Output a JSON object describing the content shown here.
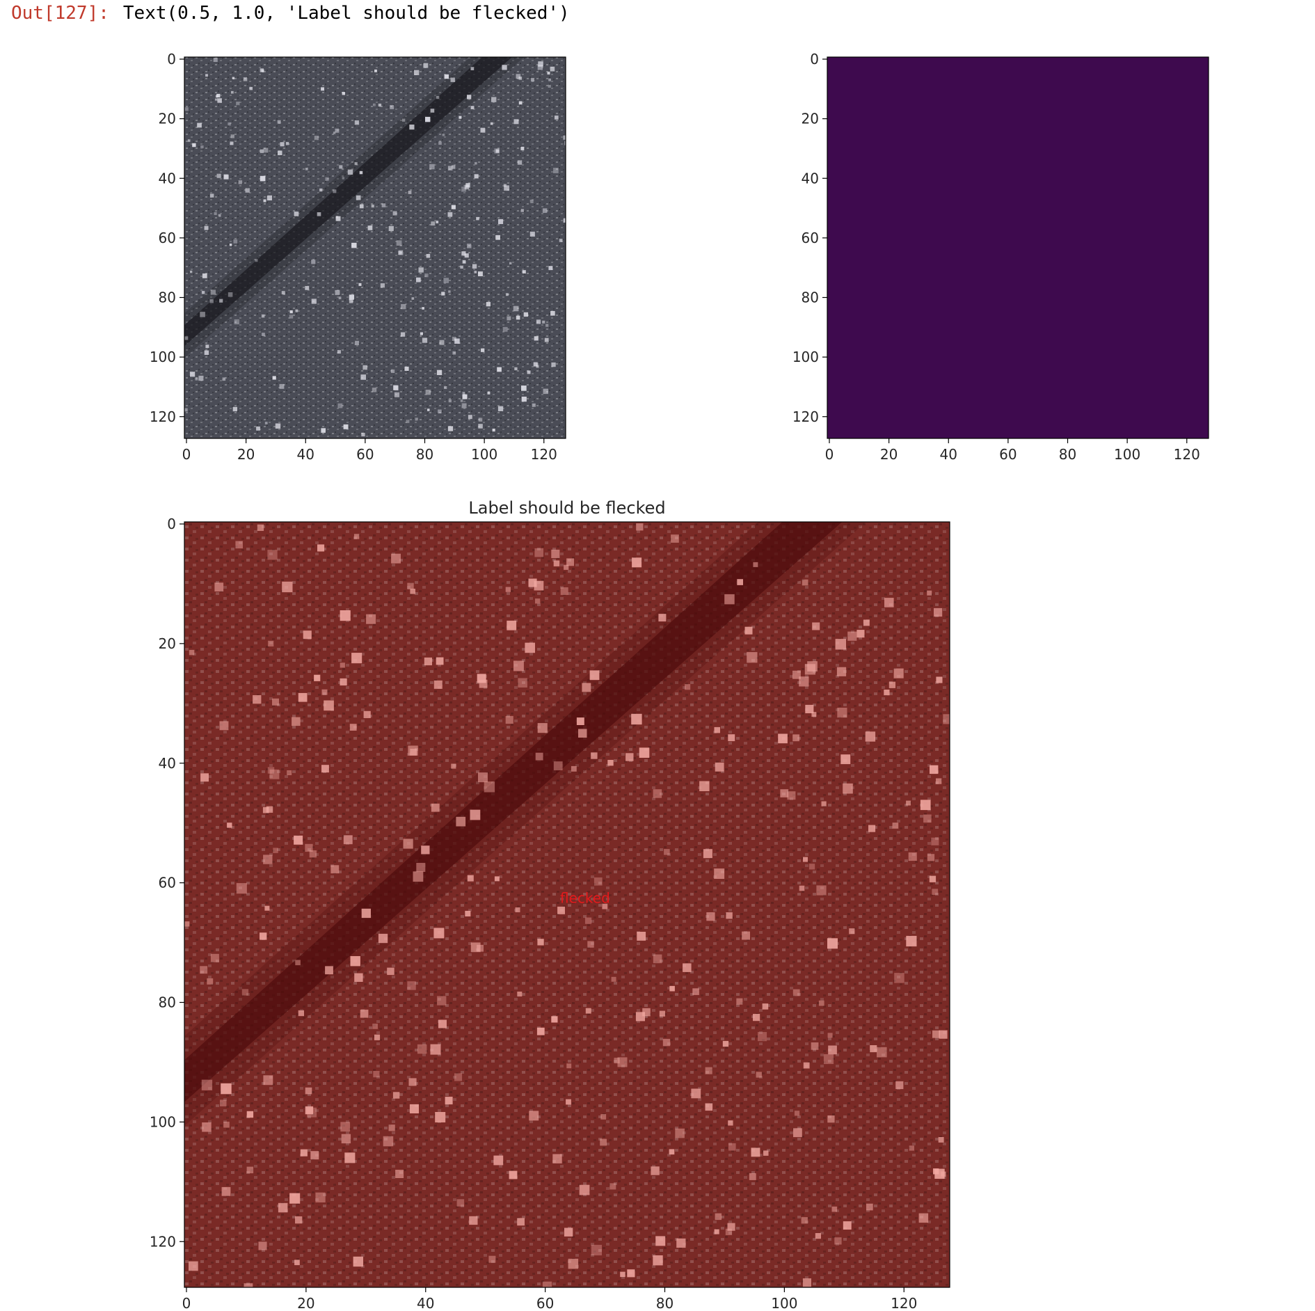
{
  "cell_output": {
    "prompt": "Out[127]:",
    "text": "Text(0.5, 1.0, 'Label should be flecked')"
  },
  "colors": {
    "prompt_red": "#c0392b",
    "viridis_dark": "#3e0a4e",
    "reds_overlay": "#7a2a26",
    "annotation_red": "#e41a1c"
  },
  "chart_data": [
    {
      "type": "heatmap",
      "name": "grayscale-image",
      "colormap": "gray",
      "xlim": [
        0,
        128
      ],
      "ylim": [
        128,
        0
      ],
      "xticks": [
        0,
        20,
        40,
        60,
        80,
        100,
        120
      ],
      "yticks": [
        0,
        20,
        40,
        60,
        80,
        100,
        120
      ],
      "title": ""
    },
    {
      "type": "heatmap",
      "name": "mask-image",
      "colormap": "viridis",
      "constant_value": 0,
      "xlim": [
        0,
        128
      ],
      "ylim": [
        128,
        0
      ],
      "xticks": [
        0,
        20,
        40,
        60,
        80,
        100,
        120
      ],
      "yticks": [
        0,
        20,
        40,
        60,
        80,
        100,
        120
      ],
      "title": ""
    },
    {
      "type": "heatmap",
      "name": "overlay-image",
      "colormap": "Reds",
      "xlim": [
        0,
        128
      ],
      "ylim": [
        128,
        0
      ],
      "xticks": [
        0,
        20,
        40,
        60,
        80,
        100,
        120
      ],
      "yticks": [
        0,
        20,
        40,
        60,
        80,
        100,
        120
      ],
      "title": "Label should be flecked",
      "annotation": {
        "text": "flecked",
        "x": 64,
        "y": 63
      }
    }
  ]
}
